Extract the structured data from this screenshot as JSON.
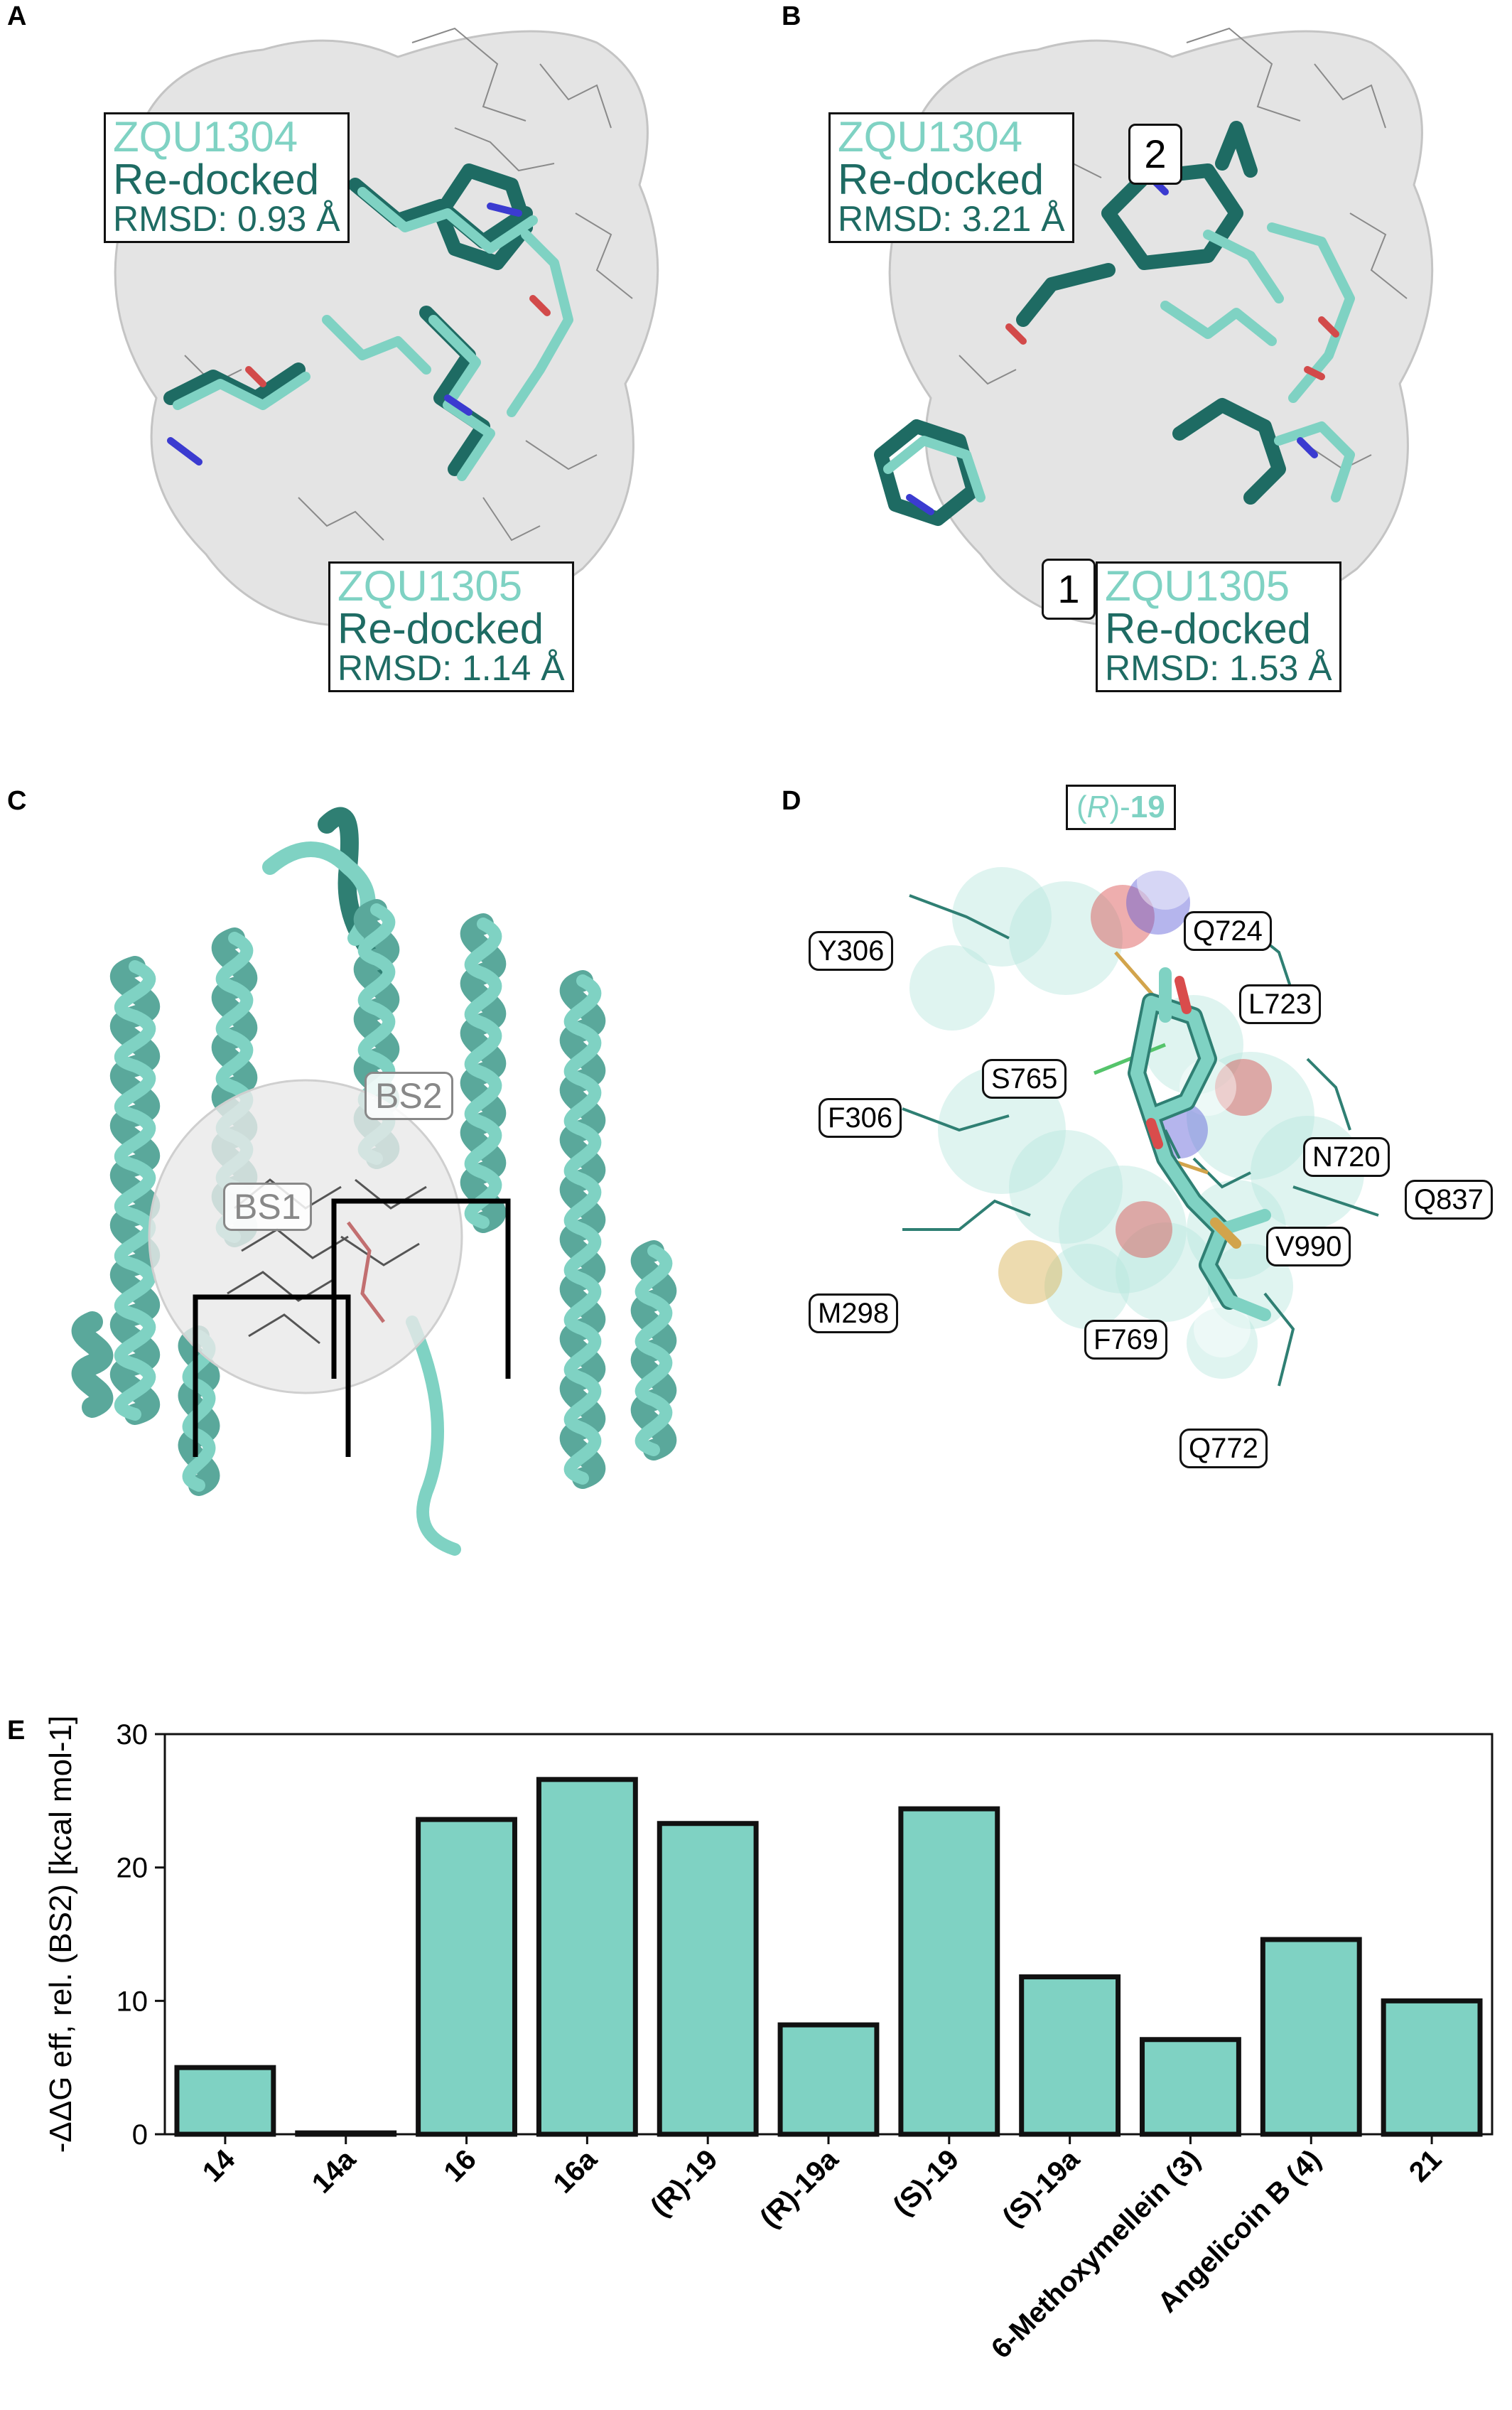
{
  "panels": {
    "A": {
      "letter": "A",
      "box1": {
        "name": "ZQU1304",
        "method": "Re-docked",
        "rmsd": "RMSD: 0.93 Å"
      },
      "box2": {
        "name": "ZQU1305",
        "method": "Re-docked",
        "rmsd": "RMSD: 1.14 Å"
      }
    },
    "B": {
      "letter": "B",
      "box1": {
        "name": "ZQU1304",
        "method": "Re-docked",
        "rmsd": "RMSD: 3.21 Å"
      },
      "box2": {
        "name": "ZQU1305",
        "method": "Re-docked",
        "rmsd": "RMSD: 1.53 Å"
      },
      "marker1": "1",
      "marker2": "2"
    },
    "C": {
      "letter": "C",
      "bs1": "BS1",
      "bs2": "BS2"
    },
    "D": {
      "letter": "D",
      "ligand_prefix": "(",
      "ligand_stereo": "R",
      "ligand_suffix": ")-",
      "ligand_number": "19",
      "residues": [
        "Y306",
        "Q724",
        "L723",
        "S765",
        "F306",
        "N720",
        "Q837",
        "V990",
        "M298",
        "F769",
        "Q772"
      ]
    },
    "E": {
      "letter": "E"
    }
  },
  "colors": {
    "teal_light": "#7fd2c3",
    "teal_dark": "#1e6b63",
    "bar_fill": "#7fd2c3"
  },
  "chart_data": {
    "type": "bar",
    "ylabel": "-ΔΔG eff, rel. (BS2) [kcal mol-1]",
    "ylim": [
      0,
      30
    ],
    "yticks": [
      0,
      10,
      20,
      30
    ],
    "categories": [
      "14",
      "14a",
      "16",
      "16a",
      "(R)-19",
      "(R)-19a",
      "(S)-19",
      "(S)-19a",
      "6-Methoxymellein (3)",
      "Angelicoin B (4)",
      "21"
    ],
    "values": [
      5.0,
      0.1,
      23.6,
      26.6,
      23.3,
      8.2,
      24.4,
      11.8,
      7.1,
      14.6,
      10.0
    ],
    "grid": false,
    "legend": "none"
  }
}
